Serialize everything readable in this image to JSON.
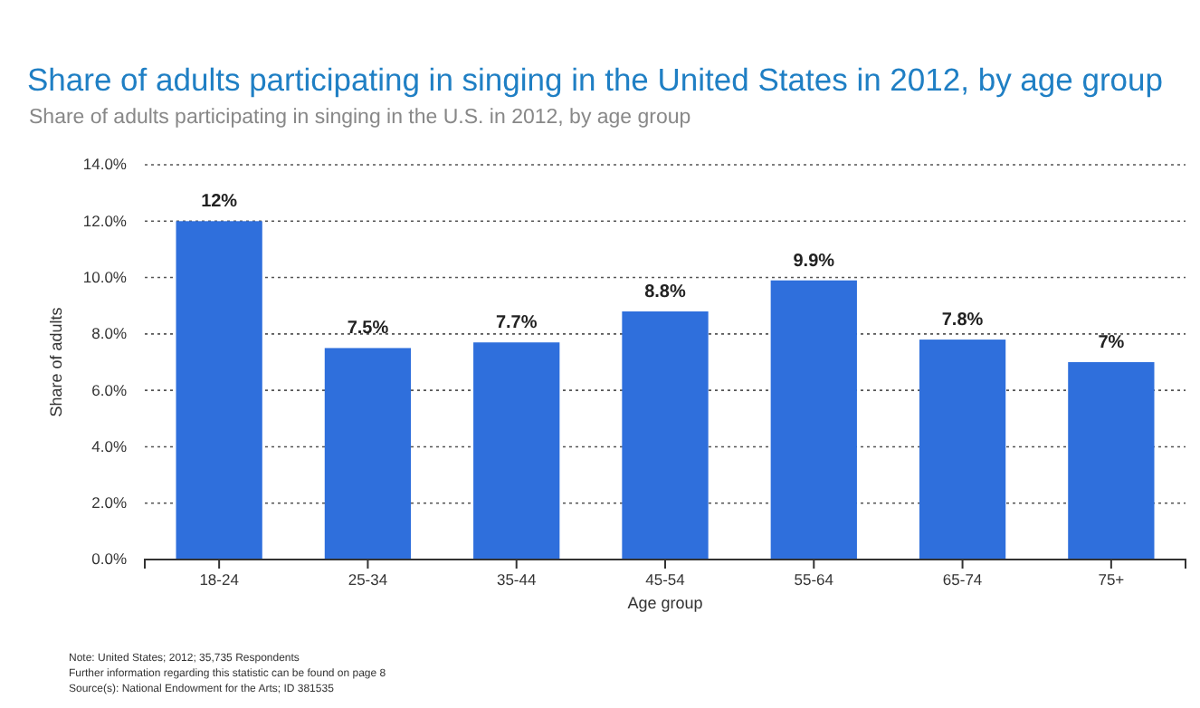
{
  "chart_data": {
    "type": "bar",
    "title": "Share of adults participating in singing in the United States in 2012, by age group",
    "subtitle": "Share of adults participating in singing in the U.S. in 2012, by age group",
    "xlabel": "Age group",
    "ylabel": "Share of adults",
    "categories": [
      "18-24",
      "25-34",
      "35-44",
      "45-54",
      "55-64",
      "65-74",
      "75+"
    ],
    "values": [
      12,
      7.5,
      7.7,
      8.8,
      9.9,
      7.8,
      7
    ],
    "value_labels": [
      "12%",
      "7.5%",
      "7.7%",
      "8.8%",
      "9.9%",
      "7.8%",
      "7%"
    ],
    "color": "#2f6fdc",
    "ylim": [
      0,
      14
    ],
    "yticks": [
      {
        "value": 0,
        "label": "0.0%"
      },
      {
        "value": 2,
        "label": "2.0%"
      },
      {
        "value": 4,
        "label": "4.0%"
      },
      {
        "value": 6,
        "label": "6.0%"
      },
      {
        "value": 8,
        "label": "8.0%"
      },
      {
        "value": 10,
        "label": "10.0%"
      },
      {
        "value": 12,
        "label": "12.0%"
      },
      {
        "value": 14,
        "label": "14.0%"
      }
    ],
    "grid": "y",
    "annotations": [
      "Note: United States; 2012; 35,735 Respondents",
      "Further information regarding this statistic can be found on page 8",
      "Source(s): National Endowment for the Arts; ID 381535"
    ]
  }
}
